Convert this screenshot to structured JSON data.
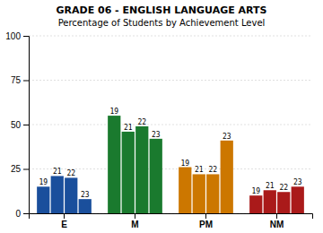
{
  "chart_data": {
    "type": "bar",
    "title": "GRADE 06 - ENGLISH LANGUAGE ARTS",
    "subtitle": "Percentage of Students by Achievement Level",
    "categories": [
      "E",
      "M",
      "PM",
      "NM"
    ],
    "series": [
      {
        "name": "19",
        "values": [
          15,
          55,
          26,
          10
        ]
      },
      {
        "name": "21",
        "values": [
          21,
          46,
          22,
          13
        ]
      },
      {
        "name": "22",
        "values": [
          20,
          49,
          22,
          12
        ]
      },
      {
        "name": "23",
        "values": [
          8,
          42,
          41,
          15
        ]
      }
    ],
    "colors": [
      "#1a4f9c",
      "#1a7a2e",
      "#cc7700",
      "#aa1a1a"
    ],
    "ylim": [
      0,
      100
    ],
    "yticks": [
      0,
      25,
      50,
      75,
      100
    ],
    "grid": true
  }
}
